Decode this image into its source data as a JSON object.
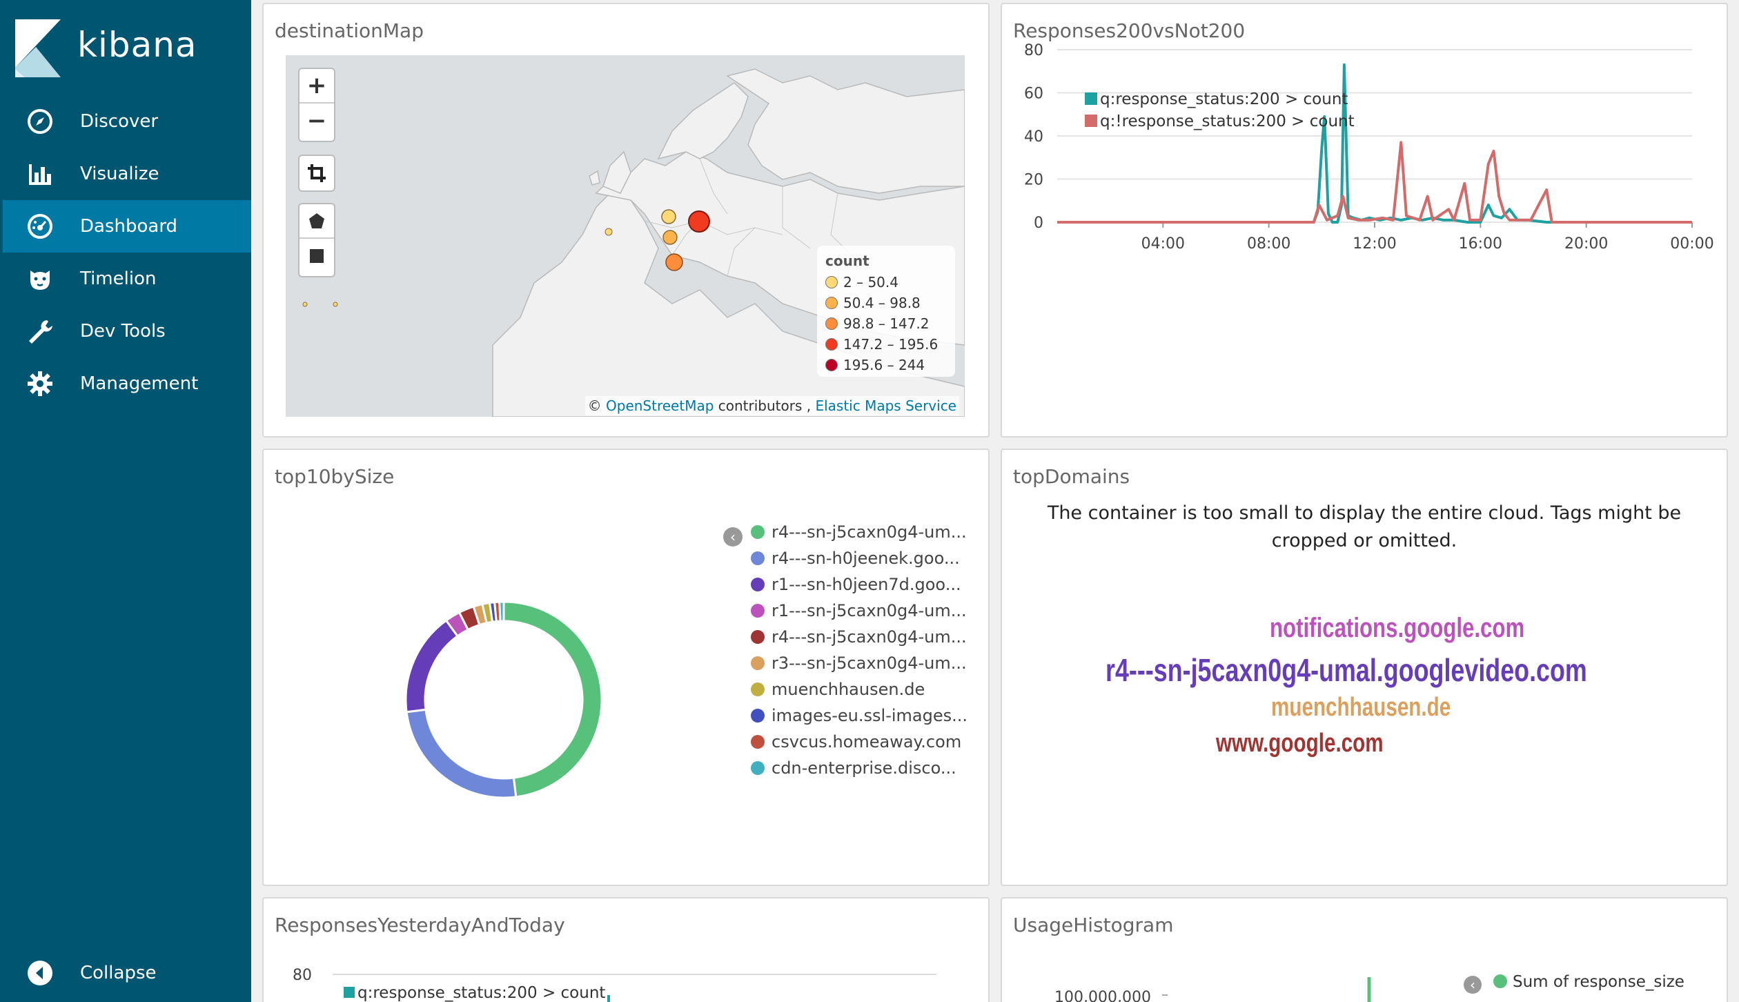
{
  "sidebar": {
    "brand": "kibana",
    "items": [
      {
        "label": "Discover",
        "icon": "compass-icon"
      },
      {
        "label": "Visualize",
        "icon": "bar-chart-icon"
      },
      {
        "label": "Dashboard",
        "icon": "dashboard-icon",
        "active": true
      },
      {
        "label": "Timelion",
        "icon": "timelion-icon"
      },
      {
        "label": "Dev Tools",
        "icon": "wrench-icon"
      },
      {
        "label": "Management",
        "icon": "gear-icon"
      }
    ],
    "collapse_label": "Collapse"
  },
  "panels": {
    "destination_map": {
      "title": "destinationMap",
      "zoom_in": "+",
      "zoom_out": "−",
      "legend_title": "count",
      "legend": [
        {
          "label": "2 – 50.4",
          "color": "#fed976"
        },
        {
          "label": "50.4 – 98.8",
          "color": "#feb24c"
        },
        {
          "label": "98.8 – 147.2",
          "color": "#fd8d3c"
        },
        {
          "label": "147.2 – 195.6",
          "color": "#f03b20"
        },
        {
          "label": "195.6 – 244",
          "color": "#bd0026"
        }
      ],
      "attribution": {
        "prefix": "© ",
        "osm": "OpenStreetMap",
        "mid": " contributors , ",
        "ems": "Elastic Maps Service"
      }
    },
    "responses_200": {
      "title": "Responses200vsNot200"
    },
    "top10": {
      "title": "top10bySize",
      "legend": [
        {
          "label": "r4---sn-j5caxn0g4-um...",
          "color": "#57c17b"
        },
        {
          "label": "r4---sn-h0jeenek.goo...",
          "color": "#6f87d8"
        },
        {
          "label": "r1---sn-h0jeen7d.goo...",
          "color": "#663db8"
        },
        {
          "label": "r1---sn-j5caxn0g4-um...",
          "color": "#bc52bc"
        },
        {
          "label": "r4---sn-j5caxn0g4-um...",
          "color": "#9e3533"
        },
        {
          "label": "r3---sn-j5caxn0g4-um...",
          "color": "#daa05d"
        },
        {
          "label": "muenchhausen.de",
          "color": "#bfaf40"
        },
        {
          "label": "images-eu.ssl-images...",
          "color": "#4050bf"
        },
        {
          "label": "csvcus.homeaway.com",
          "color": "#bf5040"
        },
        {
          "label": "cdn-enterprise.disco...",
          "color": "#40afbf"
        }
      ]
    },
    "top_domains": {
      "title": "topDomains",
      "message": "The container is too small to display the entire cloud. Tags might be cropped or omitted.",
      "words": [
        {
          "text": "notifications.google.com",
          "color": "#bc52bc"
        },
        {
          "text": "r4---sn-j5caxn0g4-umal.googlevideo.com",
          "color": "#663db8"
        },
        {
          "text": "muenchhausen.de",
          "color": "#daa05d"
        },
        {
          "text": "www.google.com",
          "color": "#9e3533"
        }
      ]
    },
    "responses_yt": {
      "title": "ResponsesYesterdayAndToday",
      "y_tick": "80",
      "legend": "q:response_status:200 > count"
    },
    "usage_histogram": {
      "title": "UsageHistogram",
      "y_tick": "100,000,000",
      "legend": "Sum of response_size"
    }
  },
  "chart_data": [
    {
      "type": "line",
      "title": "Responses200vsNot200",
      "x_ticks": [
        "04:00",
        "08:00",
        "12:00",
        "16:00",
        "20:00",
        "00:00"
      ],
      "ylim": [
        0,
        80
      ],
      "y_ticks": [
        0,
        20,
        40,
        60,
        80
      ],
      "legend_position": "top-left",
      "grid": true,
      "series": [
        {
          "name": "q:response_status:200 > count",
          "color": "#1fa1a1",
          "points": [
            [
              0,
              0
            ],
            [
              9.7,
              0
            ],
            [
              9.85,
              5
            ],
            [
              10.0,
              34
            ],
            [
              10.1,
              49
            ],
            [
              10.25,
              4
            ],
            [
              10.4,
              0
            ],
            [
              10.6,
              0
            ],
            [
              10.75,
              8
            ],
            [
              10.85,
              73
            ],
            [
              11.0,
              3
            ],
            [
              11.2,
              2
            ],
            [
              11.5,
              1
            ],
            [
              11.8,
              2
            ],
            [
              12.2,
              1
            ],
            [
              12.6,
              2
            ],
            [
              13.0,
              1
            ],
            [
              13.4,
              2
            ],
            [
              13.8,
              1
            ],
            [
              14.2,
              2
            ],
            [
              14.6,
              1
            ],
            [
              15.0,
              1
            ],
            [
              15.5,
              0
            ],
            [
              16.0,
              0
            ],
            [
              16.3,
              8
            ],
            [
              16.5,
              3
            ],
            [
              16.8,
              2
            ],
            [
              17.1,
              6
            ],
            [
              17.4,
              1
            ],
            [
              17.8,
              1
            ],
            [
              18.5,
              0
            ],
            [
              24,
              0
            ]
          ]
        },
        {
          "name": "q:!response_status:200 > count",
          "color": "#d36b6b",
          "points": [
            [
              0,
              0
            ],
            [
              9.7,
              0
            ],
            [
              9.9,
              8
            ],
            [
              10.2,
              1
            ],
            [
              10.6,
              3
            ],
            [
              10.8,
              12
            ],
            [
              11.0,
              2
            ],
            [
              11.4,
              1
            ],
            [
              11.8,
              1
            ],
            [
              12.3,
              2
            ],
            [
              12.7,
              1
            ],
            [
              13.0,
              37
            ],
            [
              13.2,
              3
            ],
            [
              13.7,
              1
            ],
            [
              14.0,
              12
            ],
            [
              14.2,
              1
            ],
            [
              14.8,
              6
            ],
            [
              15.0,
              1
            ],
            [
              15.4,
              18
            ],
            [
              15.6,
              1
            ],
            [
              16.0,
              1
            ],
            [
              16.3,
              27
            ],
            [
              16.5,
              33
            ],
            [
              16.7,
              12
            ],
            [
              16.9,
              4
            ],
            [
              17.1,
              1
            ],
            [
              17.6,
              1
            ],
            [
              17.9,
              1
            ],
            [
              18.5,
              15
            ],
            [
              18.7,
              0
            ],
            [
              24,
              0
            ]
          ]
        }
      ]
    },
    {
      "type": "pie",
      "title": "top10bySize",
      "donut": true,
      "slices": [
        {
          "label": "r4---sn-j5caxn0g4-um...",
          "value": 48.0
        },
        {
          "label": "r4---sn-h0jeenek.goo...",
          "value": 25.0
        },
        {
          "label": "r1---sn-h0jeen7d.goo...",
          "value": 17.0
        },
        {
          "label": "r1---sn-j5caxn0g4-um...",
          "value": 2.5
        },
        {
          "label": "r4---sn-j5caxn0g4-um...",
          "value": 2.5
        },
        {
          "label": "r3---sn-j5caxn0g4-um...",
          "value": 1.5
        },
        {
          "label": "muenchhausen.de",
          "value": 1.2
        },
        {
          "label": "images-eu.ssl-images...",
          "value": 0.8
        },
        {
          "label": "csvcus.homeaway.com",
          "value": 0.8
        },
        {
          "label": "cdn-enterprise.disco...",
          "value": 0.7
        }
      ]
    }
  ]
}
